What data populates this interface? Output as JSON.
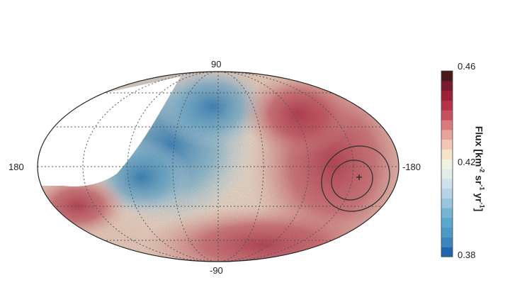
{
  "chart_data": {
    "type": "heatmap",
    "projection": "Mollweide",
    "xlabel": "",
    "ylabel": "",
    "lon_ticks": [
      "180",
      "-180"
    ],
    "lat_ticks": [
      "90",
      "-90"
    ],
    "colorbar": {
      "label_main": "Flux [km",
      "sup1": "-2",
      "label_mid1": " sr",
      "sup2": "-1",
      "label_mid2": " yr",
      "sup3": "-1",
      "label_end": "]",
      "ticks": [
        "0.46",
        "0.42",
        "0.38"
      ],
      "vmin": 0.38,
      "vmax": 0.46,
      "colors": [
        "#2166ac",
        "#3d86bd",
        "#4a9ac4",
        "#5aa8cc",
        "#78b4d4",
        "#98c4dd",
        "#b6d4e6",
        "#cfe1ec",
        "#e2ece9",
        "#f2f2e0",
        "#f6e3c8",
        "#f2c7b8",
        "#e8a39a",
        "#d97a7c",
        "#c8505e",
        "#b53348",
        "#9b2139",
        "#7a1a30",
        "#4a1a1a"
      ]
    },
    "contours": [
      "inner-contour",
      "outer-contour"
    ],
    "marker": "+",
    "no_data_region": "blank (white)",
    "grid": true,
    "map_description_note": ""
  }
}
